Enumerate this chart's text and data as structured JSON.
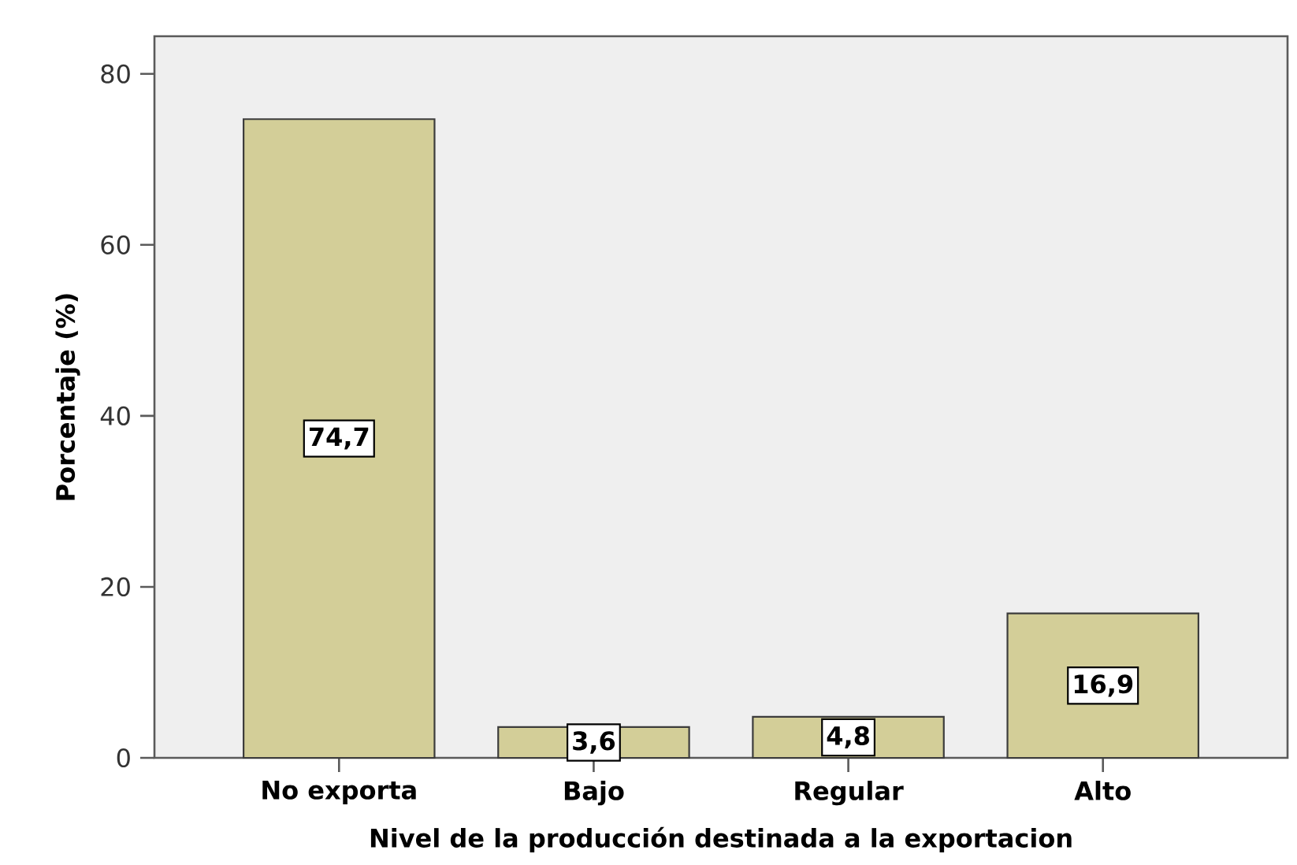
{
  "chart_data": {
    "type": "bar",
    "xlabel": "Nivel de la producción destinada a la exportacion",
    "ylabel": "Porcentaje (%)",
    "categories": [
      "No exporta",
      "Bajo",
      "Regular",
      "Alto"
    ],
    "values": [
      74.7,
      3.6,
      4.8,
      16.9
    ],
    "value_labels": [
      "74,7",
      "3,6",
      "4,8",
      "16,9"
    ],
    "color": "#d3ce98",
    "ylim": [
      0,
      84.4
    ],
    "yticks": [
      0,
      20,
      40,
      60,
      80
    ]
  }
}
